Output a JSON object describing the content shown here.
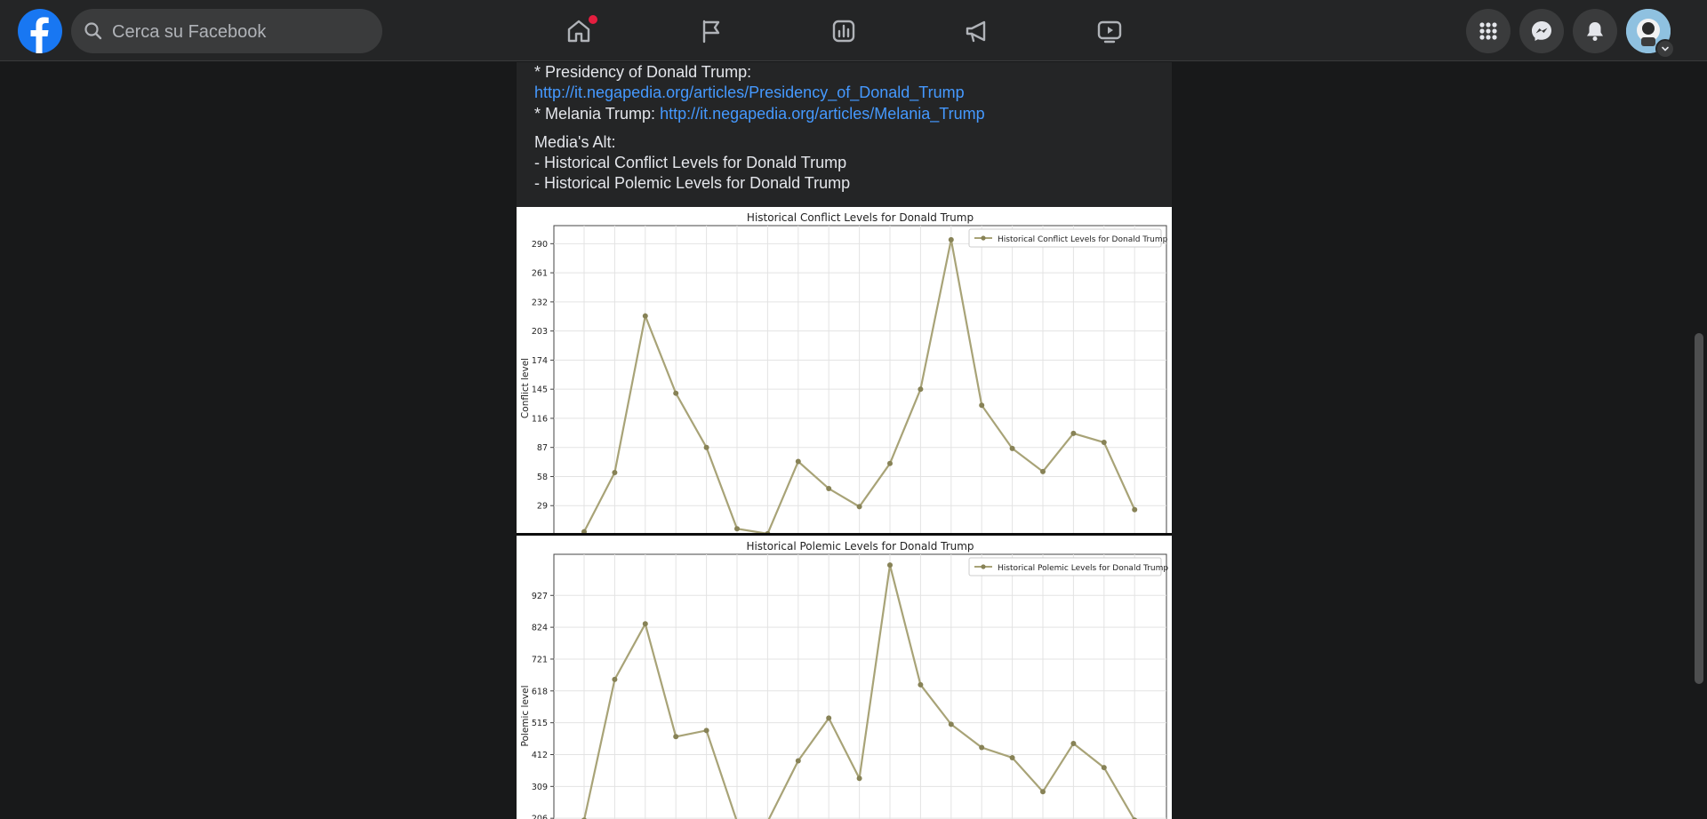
{
  "header": {
    "search_placeholder": "Cerca su Facebook",
    "accent": "#1877f2",
    "notification_dot_color": "#e41e3f",
    "nav_icons": [
      "home-icon",
      "flag-icon",
      "chart-icon",
      "megaphone-icon",
      "video-icon"
    ],
    "right_icons": [
      "menu-grid-icon",
      "messenger-icon",
      "bell-icon",
      "avatar"
    ]
  },
  "post": {
    "presidency_label": "* Presidency of Donald Trump:",
    "presidency_link": "http://it.negapedia.org/articles/Presidency_of_Donald_Trump",
    "melania_label": "* Melania Trump:",
    "melania_link": "http://it.negapedia.org/articles/Melania_Trump",
    "alt_title": "Media's Alt:",
    "alt_items": [
      "- Historical Conflict Levels for Donald Trump",
      "- Historical Polemic Levels for Donald Trump"
    ],
    "link_color": "#4599ff"
  },
  "chart_data": [
    {
      "type": "line",
      "title": "Historical Conflict Levels for Donald Trump",
      "xlabel": "",
      "ylabel": "Conflict level",
      "y_ticks": [
        29,
        58,
        87,
        116,
        145,
        174,
        203,
        232,
        261,
        290
      ],
      "ylim": [
        0,
        308
      ],
      "legend_position": "top-right",
      "grid": true,
      "color": "#a8a377",
      "series": [
        {
          "name": "Historical Conflict Levels for Donald Trump",
          "values": [
            3,
            62,
            218,
            141,
            87,
            6,
            1,
            73,
            46,
            28,
            71,
            145,
            294,
            129,
            86,
            63,
            101,
            92,
            25
          ]
        }
      ]
    },
    {
      "type": "line",
      "title": "Historical Polemic Levels for Donald Trump",
      "xlabel": "",
      "ylabel": "Polemic level",
      "y_ticks": [
        206,
        309,
        412,
        515,
        618,
        721,
        824,
        927
      ],
      "ylim": [
        195,
        1060
      ],
      "legend_position": "top-right",
      "grid": true,
      "color": "#a8a377",
      "series": [
        {
          "name": "Historical Polemic Levels for Donald Trump",
          "values": [
            200,
            655,
            835,
            470,
            490,
            195,
            195,
            392,
            530,
            335,
            1025,
            638,
            510,
            435,
            402,
            292,
            448,
            370,
            200
          ]
        }
      ]
    }
  ]
}
